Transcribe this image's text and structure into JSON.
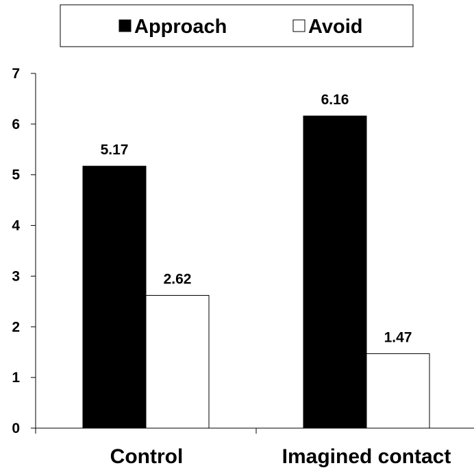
{
  "chart_data": {
    "type": "bar",
    "categories": [
      "Control",
      "Imagined contact"
    ],
    "series": [
      {
        "name": "Approach",
        "values": [
          5.17,
          6.16
        ],
        "color": "#000000"
      },
      {
        "name": "Avoid",
        "values": [
          2.62,
          1.47
        ],
        "color": "#ffffff"
      }
    ],
    "data_labels": [
      [
        "5.17",
        "6.16"
      ],
      [
        "2.62",
        "1.47"
      ]
    ],
    "ylim": [
      0,
      7
    ],
    "yticks": [
      0,
      1,
      2,
      3,
      4,
      5,
      6,
      7
    ],
    "ytick_labels": [
      "0",
      "1",
      "2",
      "3",
      "4",
      "5",
      "6",
      "7"
    ],
    "grid": false,
    "legend_position": "top"
  }
}
